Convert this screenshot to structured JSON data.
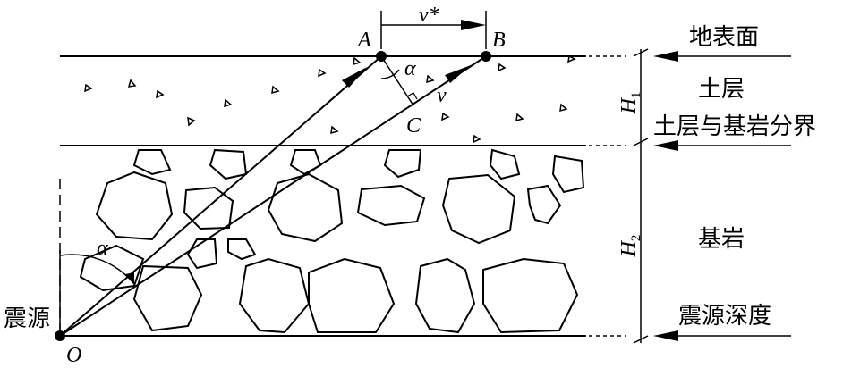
{
  "labels": {
    "surface": "地表面",
    "soil": "土层",
    "boundary": "土层与基岩分界",
    "bedrock": "基岩",
    "source_depth": "震源深度",
    "source": "震源"
  },
  "points": {
    "A": "A",
    "B": "B",
    "C": "C",
    "O": "O"
  },
  "symbols": {
    "apparent_velocity": "v*",
    "velocity": "v",
    "angle_surface": "α",
    "angle_source": "α",
    "H1": "H",
    "H1_sub": "1",
    "H2": "H",
    "H2_sub": "2"
  }
}
